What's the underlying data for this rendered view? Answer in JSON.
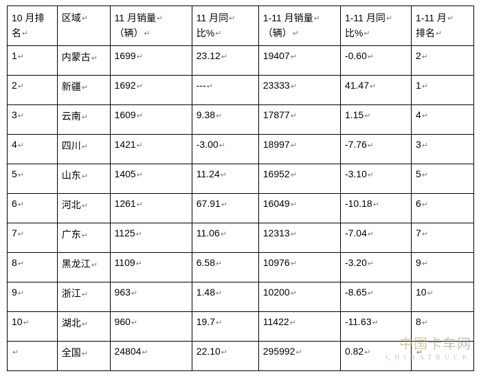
{
  "table": {
    "columns": [
      "10 月排名",
      "区域",
      "11 月销量\n（辆）",
      "11 月同\n比%",
      "1-11 月销量\n（辆）",
      "1-11 月同\n比%",
      "1-11 月\n排名"
    ],
    "rows": [
      [
        "1",
        "内蒙古",
        "1699",
        "23.12",
        "19407",
        "-0.60",
        "2"
      ],
      [
        "2",
        "新疆",
        "1692",
        "---",
        "23333",
        "41.47",
        "1"
      ],
      [
        "3",
        "云南",
        "1609",
        "9.38",
        "17877",
        "1.15",
        "4"
      ],
      [
        "4",
        "四川",
        "1421",
        "-3.00",
        "18997",
        "-7.76",
        "3"
      ],
      [
        "5",
        "山东",
        "1405",
        "11.24",
        "16952",
        "-3.10",
        "5"
      ],
      [
        "6",
        "河北",
        "1261",
        "67.91",
        "16049",
        "-10.18",
        "6"
      ],
      [
        "7",
        "广东",
        "1125",
        "11.06",
        "12313",
        "-7.04",
        "7"
      ],
      [
        "8",
        "黑龙江",
        "1109",
        "6.58",
        "10976",
        "-3.20",
        "9"
      ],
      [
        "9",
        "浙江",
        "963",
        "1.48",
        "10200",
        "-8.65",
        "10"
      ],
      [
        "10",
        "湖北",
        "960",
        "19.7",
        "11422",
        "-11.63",
        "8"
      ],
      [
        "",
        "全国",
        "24804",
        "22.10",
        "295992",
        "0.82",
        ""
      ]
    ],
    "border_color": "#000000",
    "text_color": "#000000",
    "marker_color": "#7a7a7a",
    "background_color": "#ffffff",
    "font_size": 14
  },
  "watermark": {
    "line1_prefix": "中国",
    "line1_suffix": "卡车网",
    "line2": "CHINATRUCK"
  }
}
